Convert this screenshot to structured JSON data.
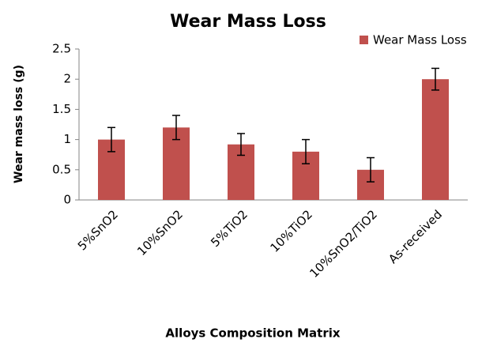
{
  "chart_data": {
    "type": "bar",
    "title": "Wear Mass Loss",
    "x_label": "Alloys Composition Matrix",
    "y_label": "Wear mass loss (g)",
    "categories": [
      "5%SnO2",
      "10%SnO2",
      "5%TiO2",
      "10%TiO2",
      "10%SnO2/TiO2",
      "As-received"
    ],
    "series": [
      {
        "name": "Wear Mass Loss",
        "color": "#c0504d",
        "values": [
          1.0,
          1.2,
          0.92,
          0.8,
          0.5,
          2.0
        ],
        "errors": [
          0.2,
          0.2,
          0.18,
          0.2,
          0.2,
          0.18
        ]
      }
    ],
    "ylim": [
      0,
      2.5
    ],
    "yticks": [
      0,
      0.5,
      1,
      1.5,
      2,
      2.5
    ],
    "grid": false,
    "legend": "top-right"
  }
}
